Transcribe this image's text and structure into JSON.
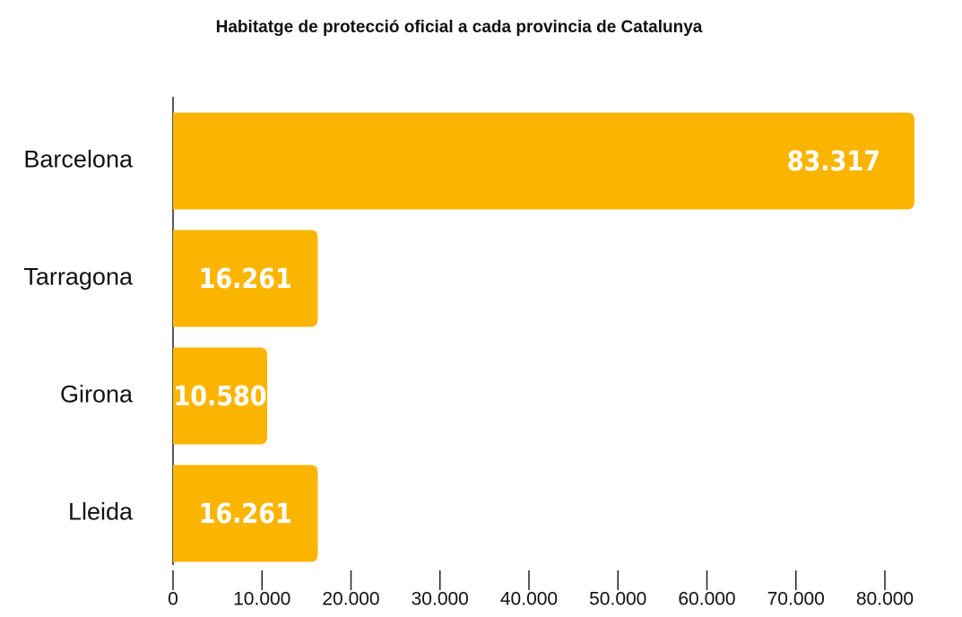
{
  "chart_data": {
    "type": "barh",
    "title": "Habitatge de protecció oficial a cada provincia de Catalunya",
    "categories": [
      "Barcelona",
      "Tarragona",
      "Girona",
      "Lleida"
    ],
    "values": [
      83317,
      16261,
      10580,
      16261
    ],
    "value_labels": [
      "83.317",
      "16.261",
      "10.580",
      "16.261"
    ],
    "color": "#fbb400",
    "xlim": [
      0,
      80000
    ],
    "xticks": [
      0,
      {
        "value": 10000,
        "label": "10.000"
      },
      {
        "value": 20000,
        "label": "20.000"
      },
      {
        "value": 30000,
        "label": "30.000"
      },
      {
        "value": 40000,
        "label": "40.000"
      },
      {
        "value": 50000,
        "label": "50.000"
      },
      {
        "value": 60000,
        "label": "60.000"
      },
      {
        "value": 70000,
        "label": "70.000"
      },
      {
        "value": 80000,
        "label": "80.000"
      }
    ]
  }
}
